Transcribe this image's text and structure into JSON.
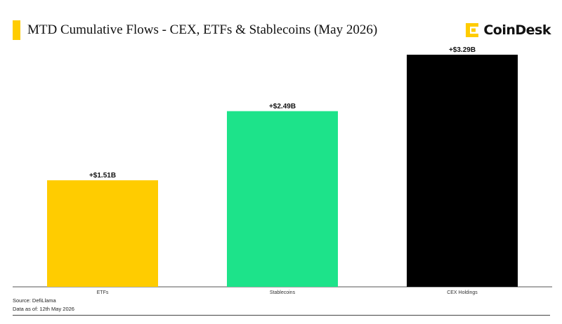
{
  "header": {
    "title": "MTD Cumulative Flows - CEX, ETFs & Stablecoins (May 2026)",
    "accent_color": "#ffcc00"
  },
  "brand": {
    "name": "CoinDesk",
    "icon": "coindesk-logo-icon",
    "color": "#ffcc00"
  },
  "footer": {
    "source": "Source: DefiLlama",
    "date": "Data as of: 12th May 2026"
  },
  "chart_data": {
    "type": "bar",
    "title": "MTD Cumulative Flows - CEX, ETFs & Stablecoins (May 2026)",
    "categories": [
      "ETFs",
      "Stablecoins",
      "CEX Holdings"
    ],
    "values": [
      1.51,
      2.49,
      3.29
    ],
    "data_labels": [
      "+$1.51B",
      "+$2.49B",
      "+$3.29B"
    ],
    "unit": "billion USD",
    "colors": [
      "#ffcc00",
      "#1de38a",
      "#000000"
    ],
    "xlabel": "",
    "ylabel": "",
    "ylim": [
      0,
      3.29
    ],
    "grid": false,
    "legend": "none"
  }
}
